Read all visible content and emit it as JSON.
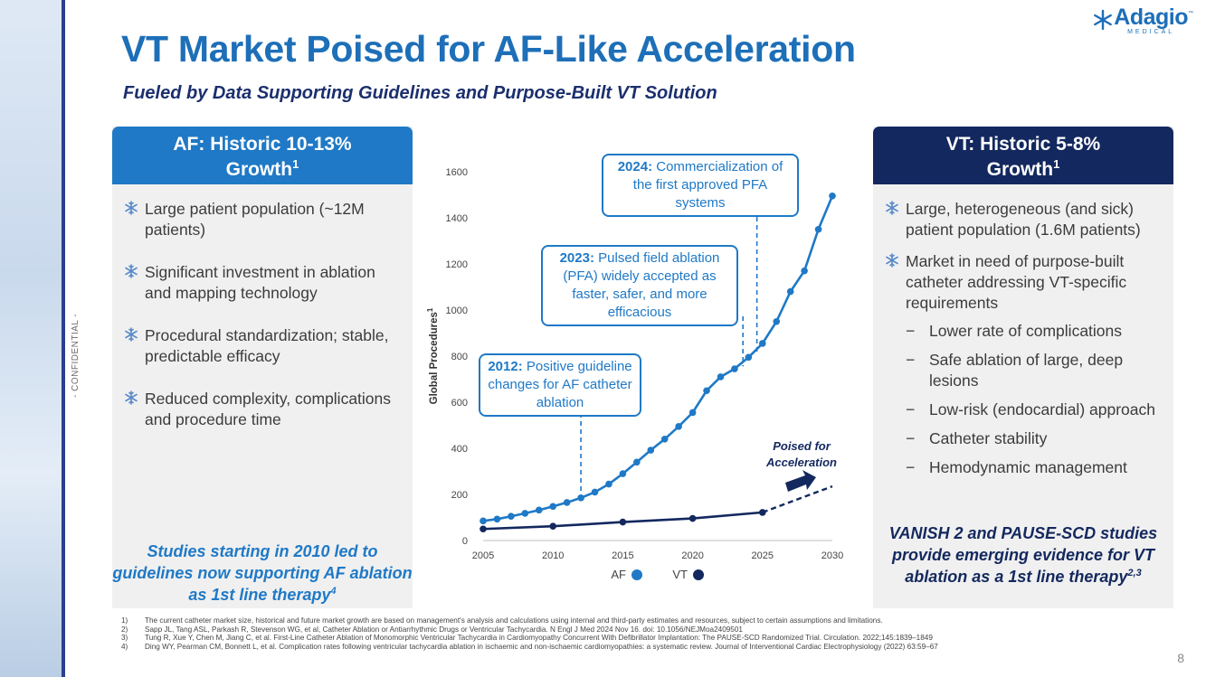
{
  "confidential_label": "- CONFIDENTIAL -",
  "logo": {
    "word": "Adagio",
    "sub": "MEDICAL",
    "tm": "™"
  },
  "title": "VT Market Poised for AF-Like Acceleration",
  "subtitle": "Fueled by Data Supporting Guidelines and Purpose-Built VT Solution",
  "af_panel": {
    "heading_line1": "AF: Historic 10-13%",
    "heading_line2": "Growth",
    "heading_sup": "1",
    "bullets": [
      "Large patient population (~12M patients)",
      "Significant investment in ablation and mapping technology",
      "Procedural standardization; stable, predictable efficacy",
      "Reduced complexity, complications and procedure time"
    ],
    "callout": "Studies starting in 2010 led to guidelines now supporting AF ablation as 1st line therapy",
    "callout_sup": "4"
  },
  "vt_panel": {
    "heading_line1": "VT: Historic 5-8%",
    "heading_line2": "Growth",
    "heading_sup": "1",
    "bullets": [
      "Large, heterogeneous (and sick) patient population (1.6M patients)",
      "Market in need of purpose-built catheter addressing VT-specific requirements"
    ],
    "sub_bullets": [
      "Lower rate of complications",
      "Safe ablation of large, deep lesions",
      "Low-risk (endocardial) approach",
      "Catheter stability",
      "Hemodynamic management"
    ],
    "dash": "−",
    "callout": "VANISH 2 and PAUSE-SCD studies provide emerging evidence for VT ablation as a 1st line therapy",
    "callout_sup": "2,3"
  },
  "chart_data": {
    "type": "line",
    "title": "",
    "xlabel": "",
    "ylabel": "Global Procedures",
    "ylabel_sup": "1",
    "xlim": [
      2005,
      2030
    ],
    "ylim": [
      0,
      1600
    ],
    "x_ticks": [
      2005,
      2010,
      2015,
      2020,
      2025,
      2030
    ],
    "y_ticks": [
      0,
      200,
      400,
      600,
      800,
      1000,
      1200,
      1400,
      1600
    ],
    "series": [
      {
        "name": "AF",
        "color": "#1f79c6",
        "x": [
          2005,
          2006,
          2007,
          2008,
          2009,
          2010,
          2011,
          2012,
          2013,
          2014,
          2015,
          2016,
          2017,
          2018,
          2019,
          2020,
          2021,
          2022,
          2023,
          2024,
          2025,
          2026,
          2027,
          2028,
          2029,
          2030
        ],
        "y": [
          85,
          93,
          105,
          118,
          132,
          148,
          165,
          185,
          210,
          245,
          290,
          340,
          392,
          440,
          495,
          555,
          650,
          710,
          745,
          795,
          855,
          950,
          1080,
          1170,
          1350,
          1495
        ]
      },
      {
        "name": "VT",
        "color": "#13285e",
        "x": [
          2005,
          2010,
          2015,
          2020,
          2025
        ],
        "y": [
          50,
          62,
          80,
          96,
          122
        ]
      }
    ],
    "projection": {
      "name": "VT projection",
      "x": [
        2025,
        2030
      ],
      "y": [
        122,
        235
      ]
    },
    "legend": [
      "AF",
      "VT"
    ],
    "legend_position": "bottom",
    "annotations": [
      {
        "year": "2012:",
        "text": "Positive guideline changes for AF catheter ablation",
        "x": 2012
      },
      {
        "year": "2023:",
        "text": "Pulsed field ablation (PFA) widely accepted as faster, safer, and more efficacious",
        "x": 2023
      },
      {
        "year": "2024:",
        "text": "Commercialization of the first approved PFA systems",
        "x": 2024
      }
    ],
    "poised_label": "Poised for Acceleration"
  },
  "footnotes": [
    {
      "num": "1)",
      "text": "The current catheter market size, historical and future market growth are based on management's analysis and calculations using internal and third-party estimates and resources, subject to certain assumptions and limitations."
    },
    {
      "num": "2)",
      "text": "Sapp JL, Tang ASL, Parkash R, Stevenson WG, et al, Catheter Ablation or Antiarrhythmic Drugs or Ventricular Tachycardia. N Engl J Med 2024 Nov 16. doi: 10.1056/NEJMoa2409501"
    },
    {
      "num": "3)",
      "text": "Tung R, Xue Y, Chen M, Jiang C, et al. First-Line Catheter Ablation of Monomorphic Ventricular Tachycardia in Cardiomyopathy Concurrent With Defibrillator Implantation: The PAUSE-SCD Randomized Trial. Circulation. 2022;145:1839–1849"
    },
    {
      "num": "4)",
      "text": "Ding WY, Pearman CM, Bonnett L, et al. Complication rates following ventricular tachycardia ablation in ischaemic and non-ischaemic cardiomyopathies: a systematic review. Journal of Interventional Cardiac Electrophysiology (2022) 63:59–67"
    }
  ],
  "page_number": "8"
}
